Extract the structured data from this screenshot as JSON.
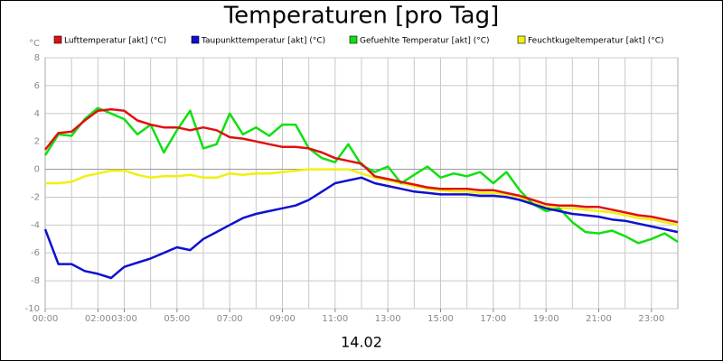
{
  "chart_data": {
    "type": "line",
    "title": "Temperaturen [pro Tag]",
    "y_label": "°C",
    "x_label": "14.02",
    "x": [
      0,
      0.5,
      1,
      1.5,
      2,
      2.5,
      3,
      3.5,
      4,
      4.5,
      5,
      5.5,
      6,
      6.5,
      7,
      7.5,
      8,
      8.5,
      9,
      9.5,
      10,
      10.5,
      11,
      11.5,
      12,
      12.5,
      13,
      13.5,
      14,
      14.5,
      15,
      15.5,
      16,
      16.5,
      17,
      17.5,
      18,
      18.5,
      19,
      19.5,
      20,
      20.5,
      21,
      21.5,
      22,
      22.5,
      23,
      23.5,
      24
    ],
    "xlim": [
      0,
      24
    ],
    "xticks": [
      {
        "value": 0,
        "label": "00:00"
      },
      {
        "value": 2,
        "label": "02:00"
      },
      {
        "value": 3,
        "label": "03:00"
      },
      {
        "value": 5,
        "label": "05:00"
      },
      {
        "value": 7,
        "label": "07:00"
      },
      {
        "value": 9,
        "label": "09:00"
      },
      {
        "value": 11,
        "label": "11:00"
      },
      {
        "value": 13,
        "label": "13:00"
      },
      {
        "value": 15,
        "label": "15:00"
      },
      {
        "value": 17,
        "label": "17:00"
      },
      {
        "value": 19,
        "label": "19:00"
      },
      {
        "value": 21,
        "label": "21:00"
      },
      {
        "value": 23,
        "label": "23:00"
      }
    ],
    "xgrid_step": 1,
    "ylim": [
      -10,
      8
    ],
    "yticks": [
      -10,
      -8,
      -6,
      -4,
      -2,
      0,
      2,
      4,
      6,
      8
    ],
    "grid": true,
    "series": [
      {
        "name": "Lufttemperatur [akt] (°C)",
        "color": "#e01010",
        "values": [
          1.4,
          2.6,
          2.7,
          3.5,
          4.2,
          4.3,
          4.2,
          3.5,
          3.2,
          3.0,
          3.0,
          2.8,
          3.0,
          2.8,
          2.3,
          2.2,
          2.0,
          1.8,
          1.6,
          1.6,
          1.5,
          1.2,
          0.8,
          0.6,
          0.4,
          -0.5,
          -0.7,
          -0.9,
          -1.1,
          -1.3,
          -1.4,
          -1.4,
          -1.4,
          -1.5,
          -1.5,
          -1.7,
          -1.9,
          -2.2,
          -2.5,
          -2.6,
          -2.6,
          -2.7,
          -2.7,
          -2.9,
          -3.1,
          -3.3,
          -3.4,
          -3.6,
          -3.8
        ]
      },
      {
        "name": "Taupunkttemperatur [akt] (°C)",
        "color": "#1010d0",
        "values": [
          -4.3,
          -6.8,
          -6.8,
          -7.3,
          -7.5,
          -7.8,
          -7.0,
          -6.7,
          -6.4,
          -6.0,
          -5.6,
          -5.8,
          -5.0,
          -4.5,
          -4.0,
          -3.5,
          -3.2,
          -3.0,
          -2.8,
          -2.6,
          -2.2,
          -1.6,
          -1.0,
          -0.8,
          -0.6,
          -1.0,
          -1.2,
          -1.4,
          -1.6,
          -1.7,
          -1.8,
          -1.8,
          -1.8,
          -1.9,
          -1.9,
          -2.0,
          -2.2,
          -2.5,
          -2.8,
          -3.0,
          -3.2,
          -3.3,
          -3.4,
          -3.6,
          -3.7,
          -3.9,
          -4.1,
          -4.3,
          -4.5
        ]
      },
      {
        "name": "Gefuehlte Temperatur [akt] (°C)",
        "color": "#10e010",
        "values": [
          1.0,
          2.5,
          2.4,
          3.6,
          4.4,
          4.0,
          3.6,
          2.5,
          3.2,
          1.2,
          2.8,
          4.2,
          1.5,
          1.8,
          4.0,
          2.5,
          3.0,
          2.4,
          3.2,
          3.2,
          1.5,
          0.8,
          0.5,
          1.8,
          0.3,
          -0.2,
          0.2,
          -1.0,
          -0.4,
          0.2,
          -0.6,
          -0.3,
          -0.5,
          -0.2,
          -1.0,
          -0.2,
          -1.5,
          -2.5,
          -3.0,
          -2.8,
          -3.8,
          -4.5,
          -4.6,
          -4.4,
          -4.8,
          -5.3,
          -5.0,
          -4.6,
          -5.2
        ]
      },
      {
        "name": "Feuchtkugeltemperatur [akt] (°C)",
        "color": "#f0f010",
        "values": [
          -1.0,
          -1.0,
          -0.9,
          -0.5,
          -0.3,
          -0.1,
          -0.1,
          -0.4,
          -0.6,
          -0.5,
          -0.5,
          -0.4,
          -0.6,
          -0.6,
          -0.3,
          -0.4,
          -0.3,
          -0.3,
          -0.2,
          -0.1,
          0,
          0,
          0,
          0,
          -0.3,
          -0.6,
          -0.8,
          -1.0,
          -1.2,
          -1.4,
          -1.5,
          -1.6,
          -1.6,
          -1.7,
          -1.7,
          -1.8,
          -2.0,
          -2.4,
          -2.7,
          -2.8,
          -2.8,
          -2.9,
          -3.0,
          -3.1,
          -3.3,
          -3.5,
          -3.6,
          -3.8,
          -4.0
        ]
      }
    ]
  }
}
